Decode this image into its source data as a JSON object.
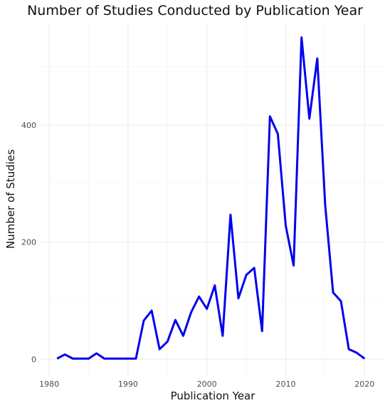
{
  "chart_data": {
    "type": "line",
    "title": "Number of Studies Conducted by Publication Year",
    "xlabel": "Publication Year",
    "ylabel": "Number of Studies",
    "xlim": [
      1979,
      2022.5
    ],
    "ylim": [
      -30,
      575
    ],
    "x_ticks": [
      1980,
      1990,
      2000,
      2010,
      2020
    ],
    "y_ticks": [
      0,
      200,
      400
    ],
    "grid": true,
    "series": [
      {
        "color": "#0000ee",
        "x": [
          1981,
          1982,
          1983,
          1984,
          1985,
          1986,
          1987,
          1988,
          1989,
          1990,
          1991,
          1992,
          1993,
          1994,
          1995,
          1996,
          1997,
          1998,
          1999,
          2000,
          2001,
          2002,
          2003,
          2004,
          2005,
          2006,
          2007,
          2008,
          2009,
          2010,
          2011,
          2012,
          2013,
          2014,
          2015,
          2016,
          2017,
          2018,
          2019,
          2020
        ],
        "values": [
          1,
          8,
          1,
          1,
          1,
          10,
          1,
          1,
          1,
          1,
          1,
          66,
          83,
          17,
          30,
          67,
          40,
          80,
          107,
          86,
          126,
          40,
          247,
          104,
          144,
          156,
          48,
          415,
          385,
          228,
          160,
          550,
          411,
          514,
          264,
          114,
          99,
          17,
          11,
          1
        ]
      }
    ]
  }
}
